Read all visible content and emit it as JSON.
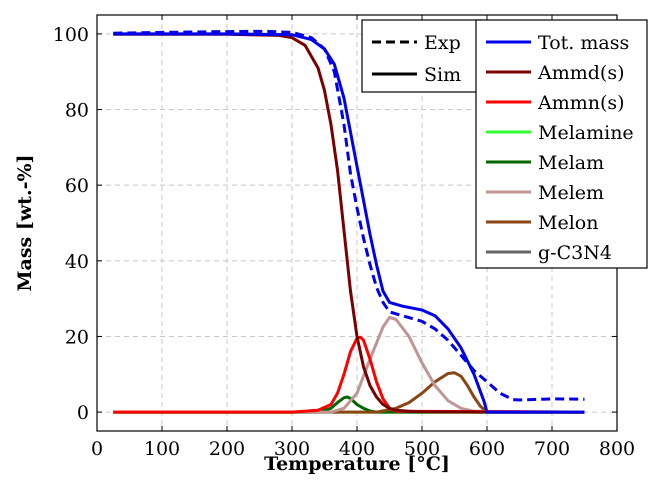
{
  "chart_data": {
    "type": "line",
    "xlabel": "Temperature [°C]",
    "ylabel": "Mass [wt.-%]",
    "xlim": [
      0,
      800
    ],
    "ylim": [
      -5,
      105
    ],
    "xticks": [
      0,
      100,
      200,
      300,
      400,
      500,
      600,
      700,
      800
    ],
    "yticks": [
      0,
      20,
      40,
      60,
      80,
      100
    ],
    "grid": true,
    "style_legend": {
      "placement": "top-right (inner-left)",
      "entries": [
        {
          "label": "Exp",
          "dash": "dashed"
        },
        {
          "label": "Sim",
          "dash": "solid"
        }
      ]
    },
    "legend_placement": "top-right",
    "series": [
      {
        "name": "Tot. mass",
        "style": "dashed",
        "color": "#0000ee",
        "x": [
          25,
          100,
          200,
          260,
          300,
          330,
          350,
          365,
          380,
          390,
          400,
          410,
          420,
          430,
          440,
          450,
          470,
          500,
          520,
          540,
          560,
          580,
          600,
          620,
          640,
          650,
          700,
          750
        ],
        "y": [
          100.2,
          100.4,
          100.6,
          100.7,
          100.4,
          99.0,
          96.0,
          90.0,
          76.0,
          63.0,
          54.0,
          46.0,
          39.0,
          33.0,
          29.0,
          26.5,
          25.5,
          24.0,
          22.0,
          19.0,
          15.0,
          11.0,
          8.0,
          5.0,
          3.3,
          3.2,
          3.5,
          3.4
        ]
      },
      {
        "name": "Tot. mass",
        "style": "solid",
        "color": "#0000ee",
        "x": [
          25,
          100,
          200,
          300,
          330,
          350,
          365,
          380,
          390,
          400,
          410,
          420,
          430,
          440,
          450,
          470,
          500,
          520,
          540,
          560,
          580,
          595,
          600,
          650,
          700,
          750
        ],
        "y": [
          100,
          100,
          100,
          99.8,
          98.5,
          96.0,
          92.0,
          83.0,
          74.0,
          65.0,
          56.0,
          47.0,
          39.0,
          32.0,
          29.0,
          28.0,
          27.0,
          25.5,
          22.0,
          17.0,
          10.0,
          3.0,
          0,
          0,
          0,
          0
        ]
      },
      {
        "name": "Ammd(s)",
        "style": "solid",
        "color": "#7a0000",
        "x": [
          25,
          100,
          200,
          280,
          300,
          320,
          340,
          350,
          360,
          370,
          380,
          390,
          400,
          410,
          420,
          430,
          440,
          450,
          460,
          480,
          500,
          600,
          750
        ],
        "y": [
          99.9,
          99.9,
          99.9,
          99.6,
          99.0,
          97.0,
          91.0,
          85.0,
          76.0,
          64.0,
          48.0,
          32.0,
          20.0,
          12.0,
          7.0,
          4.0,
          2.0,
          1.0,
          0.5,
          0.2,
          0.1,
          0,
          0
        ]
      },
      {
        "name": "Ammn(s)",
        "style": "solid",
        "color": "#ff0000",
        "x": [
          25,
          300,
          340,
          360,
          370,
          380,
          390,
          400,
          405,
          410,
          420,
          430,
          440,
          450,
          460,
          750
        ],
        "y": [
          0,
          0,
          0.5,
          2.0,
          5.0,
          10.0,
          16.0,
          19.5,
          19.8,
          19.0,
          14.0,
          8.0,
          3.5,
          1.0,
          0.2,
          0
        ]
      },
      {
        "name": "Melamine",
        "style": "solid",
        "color": "#33ff33",
        "x": [
          25,
          750
        ],
        "y": [
          0,
          0
        ]
      },
      {
        "name": "Melam",
        "style": "solid",
        "color": "#006600",
        "x": [
          25,
          340,
          360,
          370,
          380,
          385,
          390,
          400,
          410,
          420,
          430,
          750
        ],
        "y": [
          0,
          0,
          1.0,
          2.5,
          3.8,
          4.0,
          3.6,
          2.0,
          1.0,
          0.3,
          0,
          0
        ]
      },
      {
        "name": "Melem",
        "style": "solid",
        "color": "#bf9595",
        "x": [
          25,
          360,
          380,
          400,
          420,
          440,
          450,
          460,
          480,
          500,
          520,
          540,
          560,
          580,
          750
        ],
        "y": [
          0,
          0,
          1.0,
          5.0,
          14.0,
          22.5,
          25.0,
          24.5,
          20.0,
          13.0,
          7.0,
          3.0,
          1.0,
          0.2,
          0
        ]
      },
      {
        "name": "Melon",
        "style": "solid",
        "color": "#8b4513",
        "x": [
          25,
          430,
          460,
          480,
          500,
          520,
          540,
          550,
          560,
          570,
          580,
          590,
          600,
          750
        ],
        "y": [
          0,
          0,
          1.0,
          2.5,
          5.0,
          8.0,
          10.2,
          10.4,
          9.5,
          7.0,
          4.0,
          1.5,
          0,
          0
        ]
      },
      {
        "name": "g-C3N4",
        "style": "solid",
        "color": "#666666",
        "x": [
          25,
          450,
          480,
          500,
          520,
          540,
          560,
          570,
          580,
          590,
          600,
          750
        ],
        "y": [
          0,
          0,
          1.0,
          2.5,
          4.0,
          5.5,
          6.2,
          6.0,
          5.0,
          2.5,
          0,
          0
        ]
      }
    ],
    "legend": {
      "entries": [
        {
          "label": "Tot.  mass",
          "color": "#0000ee"
        },
        {
          "label": "Ammd(s)",
          "color": "#7a0000"
        },
        {
          "label": "Ammn(s)",
          "color": "#ff0000"
        },
        {
          "label": "Melamine",
          "color": "#33ff33"
        },
        {
          "label": "Melam",
          "color": "#006600"
        },
        {
          "label": "Melem",
          "color": "#bf9595"
        },
        {
          "label": "Melon",
          "color": "#8b4513"
        },
        {
          "label": "g-C3N4",
          "color": "#666666"
        }
      ]
    }
  }
}
